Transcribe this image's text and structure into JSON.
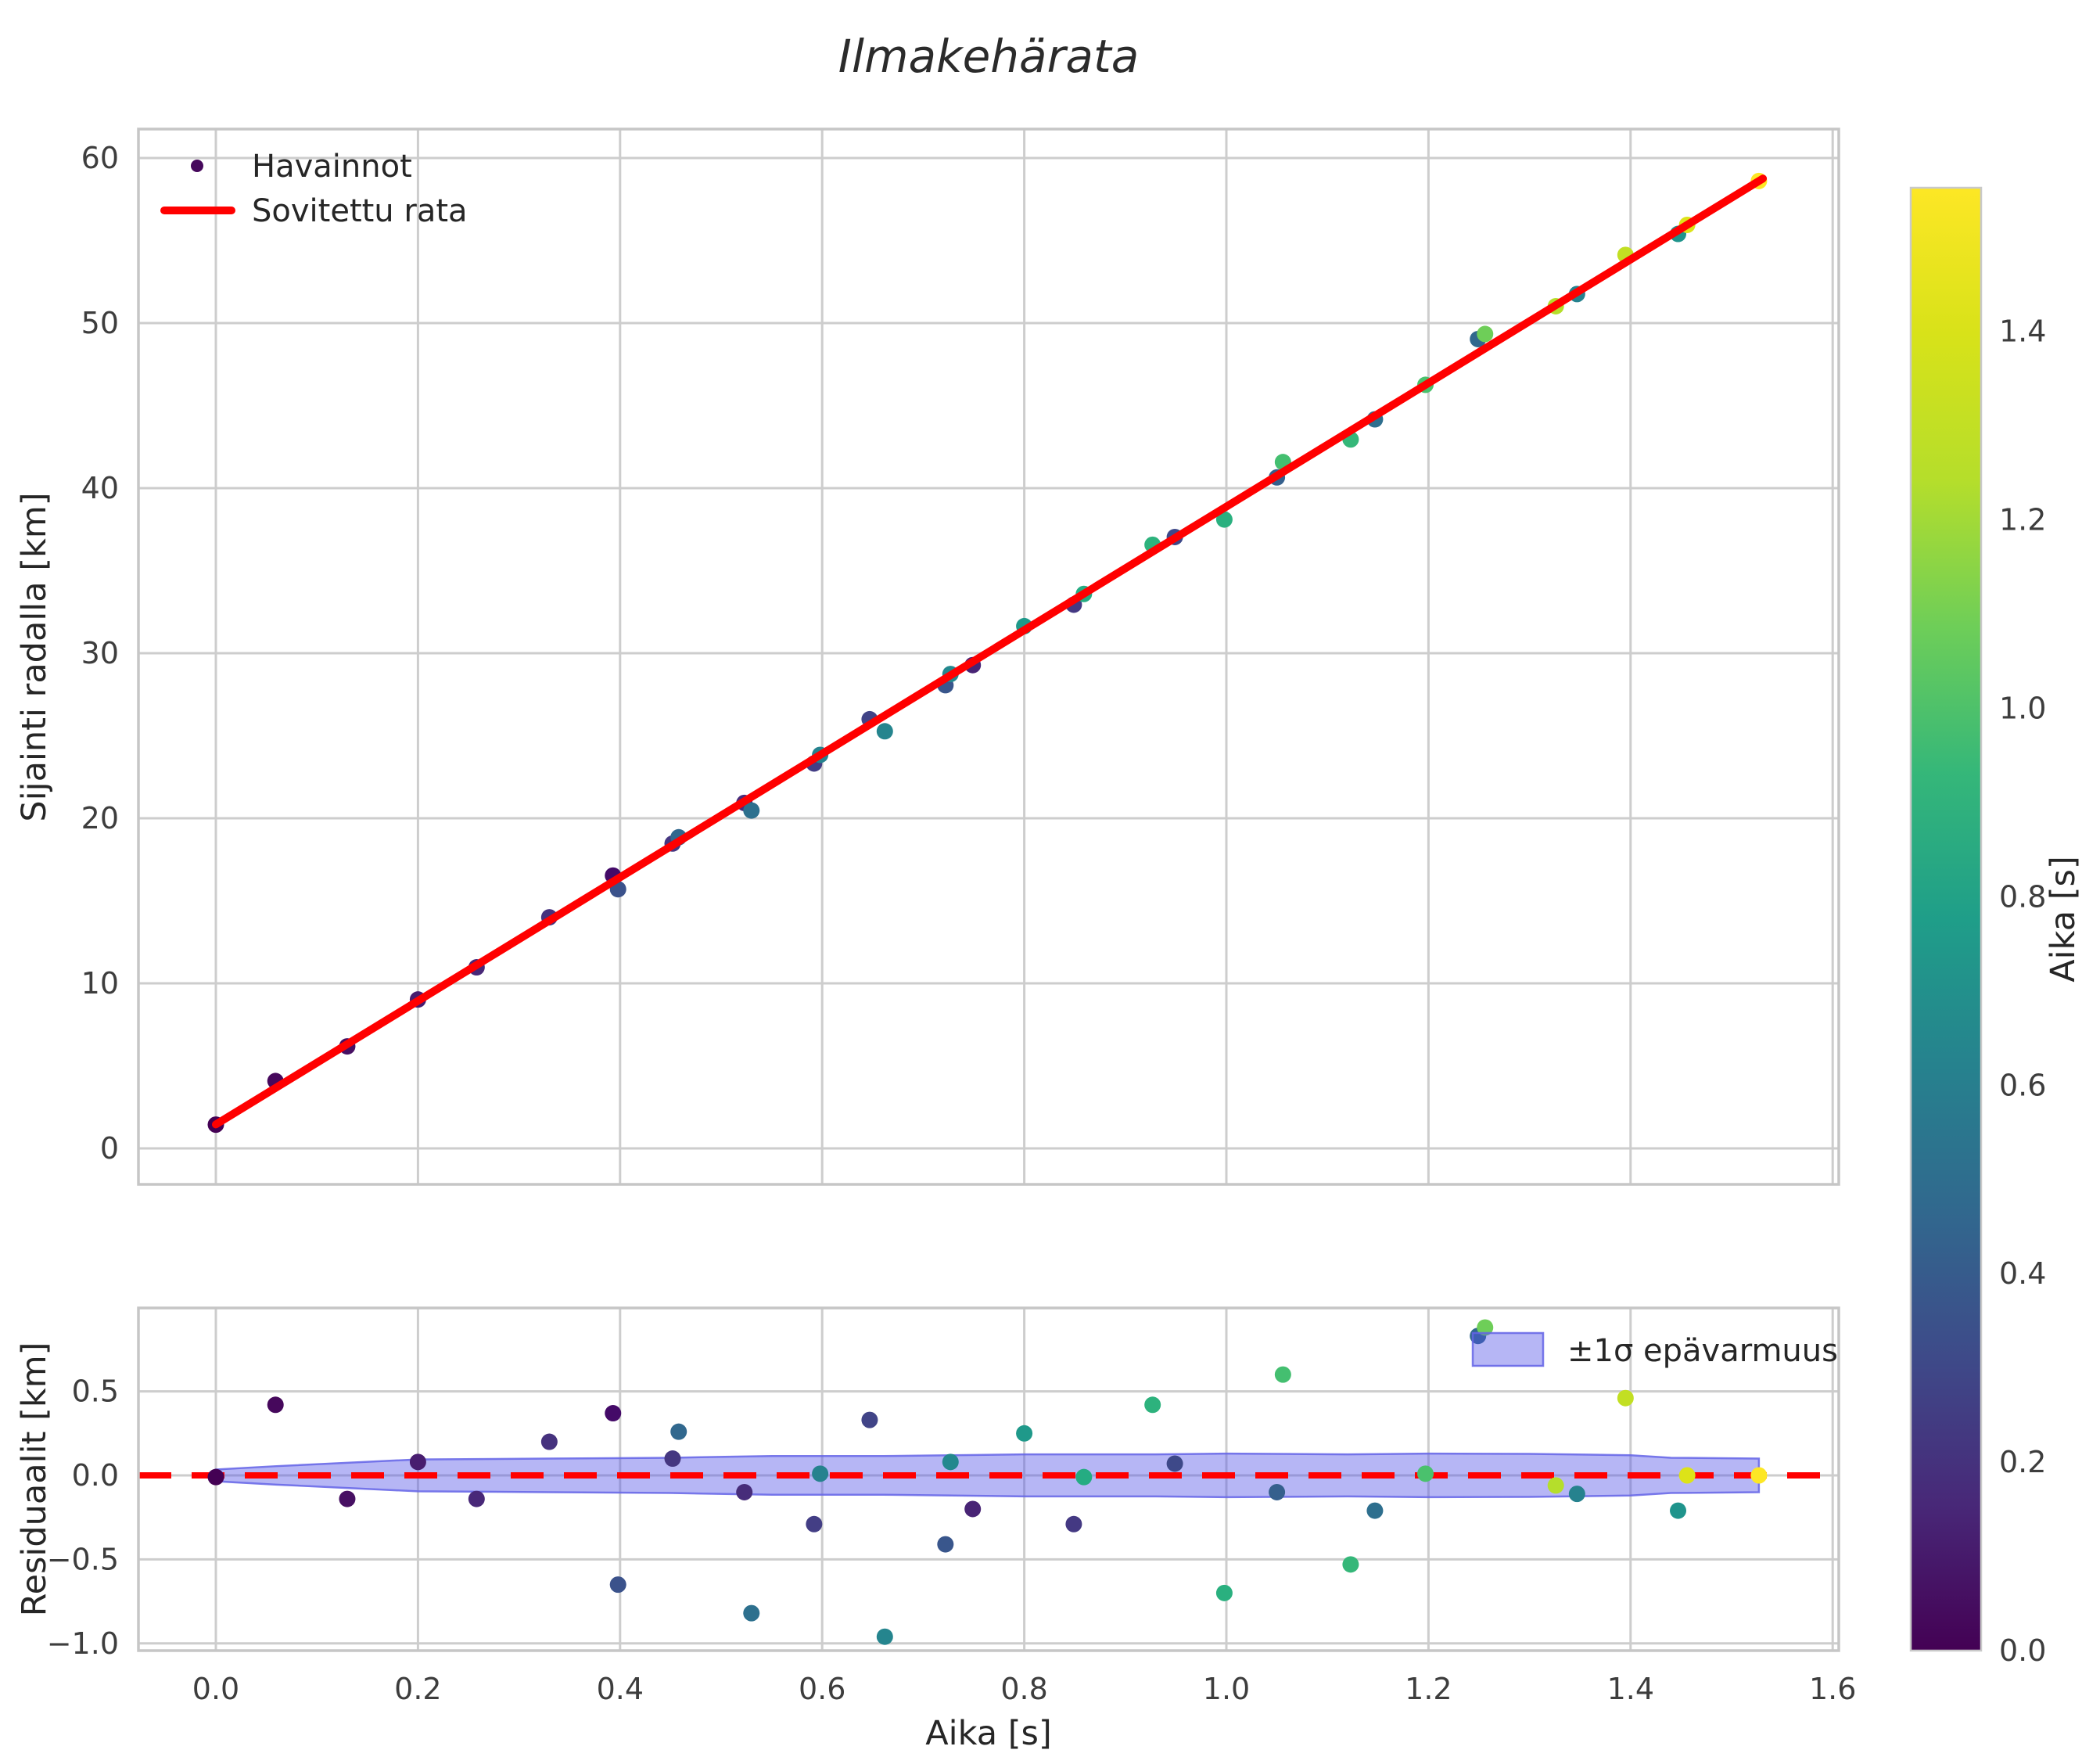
{
  "title": "Ilmakehärata",
  "colors": {
    "fit_line": "#ff0000",
    "zero_line": "#ff0000",
    "band_fill": "#b5b5f5",
    "band_edge": "#6464e6",
    "grid": "#cdcdcd",
    "text": "#262626"
  },
  "chart_data": [
    {
      "id": "trajectory",
      "type": "scatter",
      "title": "Ilmakehärata",
      "xlabel": "",
      "ylabel": "Sijainti radalla [km]",
      "xlim": [
        -0.077,
        1.607
      ],
      "ylim": [
        -2.2,
        61.8
      ],
      "x_tick_labels_visible": false,
      "xticks": [
        {
          "v": 0.0,
          "label": "0.0"
        },
        {
          "v": 0.2,
          "label": "0.2"
        },
        {
          "v": 0.4,
          "label": "0.4"
        },
        {
          "v": 0.6,
          "label": "0.6"
        },
        {
          "v": 0.8,
          "label": "0.8"
        },
        {
          "v": 1.0,
          "label": "1.0"
        },
        {
          "v": 1.2,
          "label": "1.2"
        },
        {
          "v": 1.4,
          "label": "1.4"
        },
        {
          "v": 1.6,
          "label": "1.6"
        }
      ],
      "yticks": [
        {
          "v": 0,
          "label": "0"
        },
        {
          "v": 10,
          "label": "10"
        },
        {
          "v": 20,
          "label": "20"
        },
        {
          "v": 30,
          "label": "30"
        },
        {
          "v": 40,
          "label": "40"
        },
        {
          "v": 50,
          "label": "50"
        },
        {
          "v": 60,
          "label": "60"
        }
      ],
      "legend": [
        {
          "label": "Havainnot",
          "type": "marker",
          "color": "#46085c"
        },
        {
          "label": "Sovitettu rata",
          "type": "line",
          "color": "#ff0000"
        }
      ],
      "fit_line": {
        "t_start": 0.0,
        "t_end": 1.531,
        "intercept_km": 1.45,
        "slope_km_per_s": 37.43
      },
      "points": [
        {
          "t": 0.0,
          "pos": 1.44,
          "res": -0.01,
          "c": "#440154"
        },
        {
          "t": 0.059,
          "pos": 4.08,
          "res": 0.42,
          "c": "#46085c"
        },
        {
          "t": 0.13,
          "pos": 6.18,
          "res": -0.14,
          "c": "#471063"
        },
        {
          "t": 0.2,
          "pos": 9.02,
          "res": 0.08,
          "c": "#481d6f"
        },
        {
          "t": 0.258,
          "pos": 10.97,
          "res": -0.14,
          "c": "#482878"
        },
        {
          "t": 0.33,
          "pos": 14.0,
          "res": 0.2,
          "c": "#46327e"
        },
        {
          "t": 0.393,
          "pos": 16.53,
          "res": 0.37,
          "c": "#440a68"
        },
        {
          "t": 0.398,
          "pos": 15.7,
          "res": -0.65,
          "c": "#3b528b"
        },
        {
          "t": 0.452,
          "pos": 18.47,
          "res": 0.1,
          "c": "#453781"
        },
        {
          "t": 0.458,
          "pos": 18.85,
          "res": 0.26,
          "c": "#31688e"
        },
        {
          "t": 0.523,
          "pos": 20.93,
          "res": -0.1,
          "c": "#472d7a"
        },
        {
          "t": 0.53,
          "pos": 20.47,
          "res": -0.82,
          "c": "#2d708e"
        },
        {
          "t": 0.592,
          "pos": 23.32,
          "res": -0.29,
          "c": "#433e85"
        },
        {
          "t": 0.598,
          "pos": 23.84,
          "res": 0.01,
          "c": "#26828e"
        },
        {
          "t": 0.647,
          "pos": 26.0,
          "res": 0.33,
          "c": "#414487"
        },
        {
          "t": 0.662,
          "pos": 25.27,
          "res": -0.96,
          "c": "#25858e"
        },
        {
          "t": 0.722,
          "pos": 28.06,
          "res": -0.41,
          "c": "#39568c"
        },
        {
          "t": 0.727,
          "pos": 28.74,
          "res": 0.08,
          "c": "#23888e"
        },
        {
          "t": 0.749,
          "pos": 29.28,
          "res": -0.2,
          "c": "#482475"
        },
        {
          "t": 0.8,
          "pos": 31.64,
          "res": 0.25,
          "c": "#1f998a"
        },
        {
          "t": 0.849,
          "pos": 32.94,
          "res": -0.29,
          "c": "#443983"
        },
        {
          "t": 0.859,
          "pos": 33.59,
          "res": -0.01,
          "c": "#25ac82"
        },
        {
          "t": 0.927,
          "pos": 36.57,
          "res": 0.42,
          "c": "#2db27d"
        },
        {
          "t": 0.949,
          "pos": 37.04,
          "res": 0.07,
          "c": "#3e4989"
        },
        {
          "t": 0.998,
          "pos": 38.1,
          "res": -0.7,
          "c": "#2ab07f"
        },
        {
          "t": 1.05,
          "pos": 40.65,
          "res": -0.1,
          "c": "#35608d"
        },
        {
          "t": 1.056,
          "pos": 41.58,
          "res": 0.6,
          "c": "#44bf70"
        },
        {
          "t": 1.123,
          "pos": 42.95,
          "res": -0.53,
          "c": "#35b779"
        },
        {
          "t": 1.147,
          "pos": 44.17,
          "res": -0.21,
          "c": "#2e6f8e"
        },
        {
          "t": 1.197,
          "pos": 46.26,
          "res": 0.01,
          "c": "#4ac16d"
        },
        {
          "t": 1.249,
          "pos": 49.03,
          "res": 0.83,
          "c": "#31688e"
        },
        {
          "t": 1.256,
          "pos": 49.34,
          "res": 0.88,
          "c": "#6ece58"
        },
        {
          "t": 1.326,
          "pos": 51.02,
          "res": -0.06,
          "c": "#b5de2b"
        },
        {
          "t": 1.347,
          "pos": 51.76,
          "res": -0.11,
          "c": "#26828e"
        },
        {
          "t": 1.395,
          "pos": 54.13,
          "res": 0.46,
          "c": "#c2df23"
        },
        {
          "t": 1.447,
          "pos": 55.4,
          "res": -0.21,
          "c": "#1f948c"
        },
        {
          "t": 1.456,
          "pos": 55.95,
          "res": 0.0,
          "c": "#dde318"
        },
        {
          "t": 1.527,
          "pos": 58.61,
          "res": 0.0,
          "c": "#fde725"
        }
      ]
    },
    {
      "id": "residuals",
      "type": "scatter",
      "points_from": "trajectory",
      "xlabel": "Aika [s]",
      "ylabel": "Residuaalit [km]",
      "xlim": [
        -0.077,
        1.607
      ],
      "ylim": [
        -1.05,
        1.0
      ],
      "yticks": [
        {
          "v": 0.5,
          "label": "0.5"
        },
        {
          "v": 0.0,
          "label": "0.0"
        },
        {
          "v": -0.5,
          "label": "−0.5"
        },
        {
          "v": -1.0,
          "label": "−1.0"
        }
      ],
      "zero_line": {
        "y": 0.0,
        "style": "dashed",
        "color": "#ff0000"
      },
      "band": {
        "legend_label": "±1σ epävarmuus",
        "t": [
          0.0,
          0.06,
          0.13,
          0.2,
          0.33,
          0.45,
          0.55,
          0.66,
          0.8,
          0.93,
          1.0,
          1.12,
          1.2,
          1.3,
          1.4,
          1.44,
          1.527
        ],
        "halfwidth": [
          0.035,
          0.055,
          0.075,
          0.095,
          0.1,
          0.105,
          0.115,
          0.115,
          0.125,
          0.125,
          0.13,
          0.125,
          0.13,
          0.128,
          0.12,
          0.105,
          0.1
        ]
      }
    }
  ],
  "colorbar": {
    "label": "Aika [s]",
    "min": 0.0,
    "max": 1.55,
    "ticks": [
      {
        "v": 0.0,
        "label": "0.0"
      },
      {
        "v": 0.2,
        "label": "0.2"
      },
      {
        "v": 0.4,
        "label": "0.4"
      },
      {
        "v": 0.6,
        "label": "0.6"
      },
      {
        "v": 0.8,
        "label": "0.8"
      },
      {
        "v": 1.0,
        "label": "1.0"
      },
      {
        "v": 1.2,
        "label": "1.2"
      },
      {
        "v": 1.4,
        "label": "1.4"
      }
    ],
    "stops": [
      {
        "off": 0.0,
        "c": "#440154"
      },
      {
        "off": 0.1,
        "c": "#482878"
      },
      {
        "off": 0.2,
        "c": "#3e4a89"
      },
      {
        "off": 0.3,
        "c": "#31688e"
      },
      {
        "off": 0.4,
        "c": "#26828e"
      },
      {
        "off": 0.5,
        "c": "#1f9e89"
      },
      {
        "off": 0.6,
        "c": "#35b779"
      },
      {
        "off": 0.7,
        "c": "#6ece58"
      },
      {
        "off": 0.8,
        "c": "#b5de2b"
      },
      {
        "off": 0.9,
        "c": "#d8e219"
      },
      {
        "off": 1.0,
        "c": "#fde725"
      }
    ]
  }
}
